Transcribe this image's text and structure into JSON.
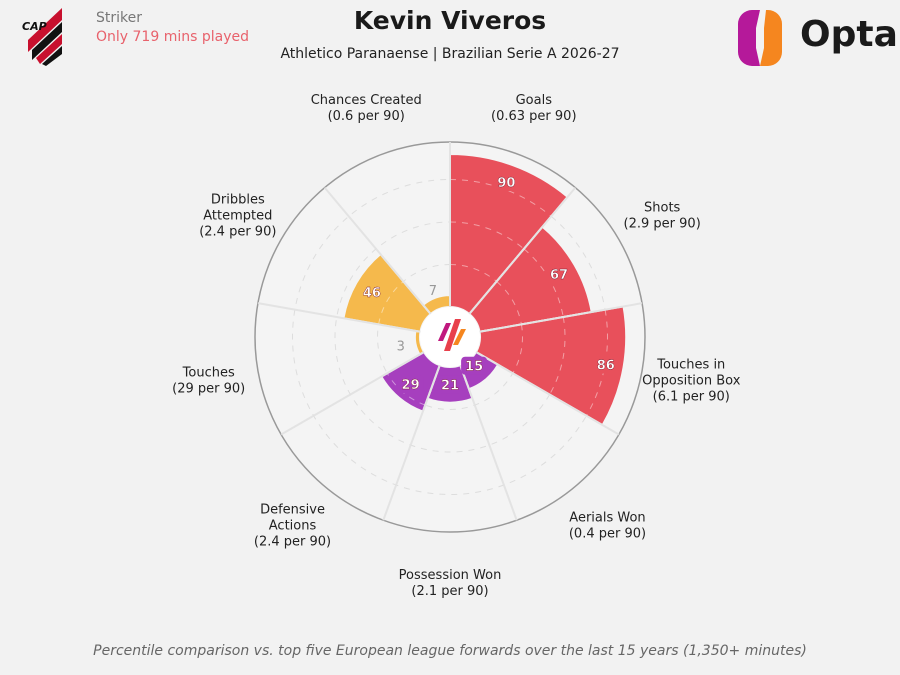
{
  "header": {
    "position": "Striker",
    "minutes_note": "Only 719 mins played",
    "title": "Kevin Viveros",
    "subtitle": "Athletico Paranaense | Brazilian Serie A 2026-27",
    "club_logo_text": "CAP",
    "brand": "Opta"
  },
  "footer": "Percentile comparison vs. top five European league forwards over the last 15 years (1,350+ minutes)",
  "chart_data": {
    "type": "pizza",
    "range": [
      0,
      100
    ],
    "categories": [
      {
        "label": [
          "Goals",
          "(0.63 per 90)"
        ],
        "value": 90,
        "color": "#e8505b"
      },
      {
        "label": [
          "Shots",
          "(2.9 per 90)"
        ],
        "value": 67,
        "color": "#e8505b"
      },
      {
        "label": [
          "Touches in",
          "Opposition Box",
          "(6.1 per 90)"
        ],
        "value": 86,
        "color": "#e8505b"
      },
      {
        "label": [
          "Aerials Won",
          "(0.4 per 90)"
        ],
        "value": 15,
        "color": "#a63fbe"
      },
      {
        "label": [
          "Possession Won",
          "(2.1 per 90)"
        ],
        "value": 21,
        "color": "#a63fbe"
      },
      {
        "label": [
          "Defensive",
          "Actions",
          "(2.4 per 90)"
        ],
        "value": 29,
        "color": "#a63fbe"
      },
      {
        "label": [
          "Touches",
          "(29 per 90)"
        ],
        "value": 3,
        "color": "#f5b94c"
      },
      {
        "label": [
          "Dribbles",
          "Attempted",
          "(2.4 per 90)"
        ],
        "value": 46,
        "color": "#f5b94c"
      },
      {
        "label": [
          "Chances Created",
          "(0.6 per 90)"
        ],
        "value": 7,
        "color": "#f5b94c"
      }
    ]
  }
}
